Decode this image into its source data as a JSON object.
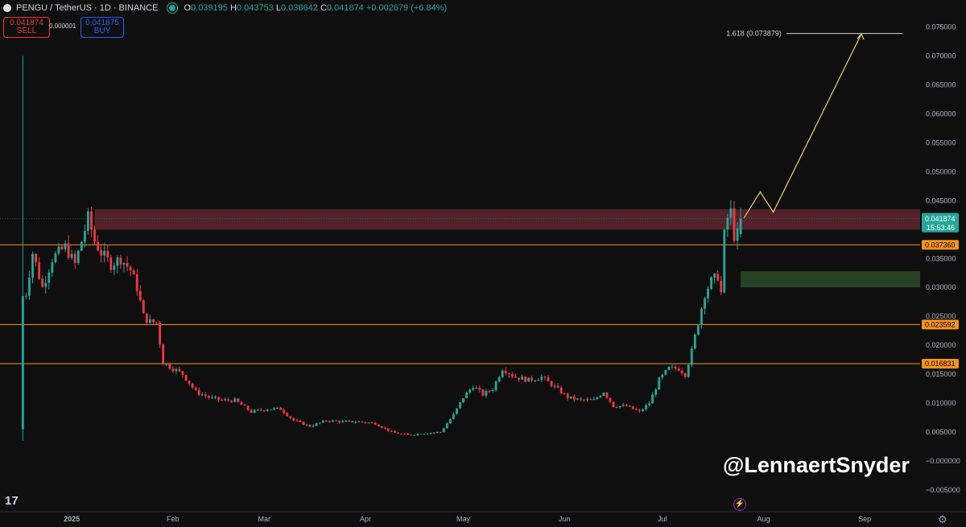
{
  "header": {
    "symbol": "PENGU / TetherUS · 1D · BINANCE",
    "o_label": "O",
    "o": "0.039195",
    "h_label": "H",
    "h": "0.043753",
    "l_label": "L",
    "l": "0.038642",
    "c_label": "C",
    "c": "0.041874",
    "change": "+0.002679 (+6.84%)"
  },
  "trade": {
    "sell_price": "0.041874",
    "sell_label": "SELL",
    "spread": "0.000001",
    "buy_price": "0.041875",
    "buy_label": "BUY"
  },
  "watermark": "@LennaertSnyder",
  "colors": {
    "up": "#26a69a",
    "down": "#f23645",
    "level": "#f7931a",
    "projection": "#e8d36a",
    "background": "#0f0f0f"
  },
  "chart_data": {
    "type": "candlestick",
    "y_range": [
      -0.005,
      0.075
    ],
    "y_ticks": [
      "0.075000",
      "0.070000",
      "0.065000",
      "0.060000",
      "0.055000",
      "0.050000",
      "0.045000",
      "0.040000",
      "0.035000",
      "0.030000",
      "0.025000",
      "0.020000",
      "0.015000",
      "0.010000",
      "0.005000",
      "−0.000000",
      "−0.005000"
    ],
    "x_labels": [
      {
        "label": "2025",
        "date": "2025-01-01"
      },
      {
        "label": "Feb",
        "date": "2025-02-01"
      },
      {
        "label": "Mar",
        "date": "2025-03-01"
      },
      {
        "label": "Apr",
        "date": "2025-04-01"
      },
      {
        "label": "May",
        "date": "2025-05-01"
      },
      {
        "label": "Jun",
        "date": "2025-06-01"
      },
      {
        "label": "Jul",
        "date": "2025-07-01"
      },
      {
        "label": "Aug",
        "date": "2025-08-01"
      },
      {
        "label": "Sep",
        "date": "2025-09-01"
      }
    ],
    "x_range": [
      "2024-12-10",
      "2025-09-18"
    ],
    "anchors": [
      [
        "2024-12-17",
        0.03
      ],
      [
        "2024-12-18",
        0.029
      ],
      [
        "2024-12-20",
        0.036
      ],
      [
        "2024-12-23",
        0.03
      ],
      [
        "2024-12-26",
        0.035
      ],
      [
        "2024-12-30",
        0.037
      ],
      [
        "2025-01-02",
        0.034
      ],
      [
        "2025-01-04",
        0.038
      ],
      [
        "2025-01-06",
        0.042
      ],
      [
        "2025-01-08",
        0.038
      ],
      [
        "2025-01-10",
        0.036
      ],
      [
        "2025-01-13",
        0.034
      ],
      [
        "2025-01-16",
        0.035
      ],
      [
        "2025-01-19",
        0.033
      ],
      [
        "2025-01-21",
        0.03
      ],
      [
        "2025-01-23",
        0.025
      ],
      [
        "2025-01-25",
        0.024
      ],
      [
        "2025-01-27",
        0.024
      ],
      [
        "2025-01-29",
        0.017
      ],
      [
        "2025-02-01",
        0.016
      ],
      [
        "2025-02-04",
        0.015
      ],
      [
        "2025-02-08",
        0.012
      ],
      [
        "2025-02-12",
        0.011
      ],
      [
        "2025-02-16",
        0.0105
      ],
      [
        "2025-02-20",
        0.0105
      ],
      [
        "2025-02-25",
        0.0085
      ],
      [
        "2025-03-02",
        0.009
      ],
      [
        "2025-03-06",
        0.009
      ],
      [
        "2025-03-10",
        0.007
      ],
      [
        "2025-03-15",
        0.006
      ],
      [
        "2025-03-20",
        0.007
      ],
      [
        "2025-03-25",
        0.0068
      ],
      [
        "2025-03-30",
        0.0068
      ],
      [
        "2025-04-04",
        0.0065
      ],
      [
        "2025-04-09",
        0.005
      ],
      [
        "2025-04-14",
        0.0045
      ],
      [
        "2025-04-19",
        0.0048
      ],
      [
        "2025-04-24",
        0.005
      ],
      [
        "2025-04-28",
        0.008
      ],
      [
        "2025-05-01",
        0.011
      ],
      [
        "2025-05-04",
        0.013
      ],
      [
        "2025-05-07",
        0.0115
      ],
      [
        "2025-05-10",
        0.0125
      ],
      [
        "2025-05-13",
        0.016
      ],
      [
        "2025-05-17",
        0.0145
      ],
      [
        "2025-05-21",
        0.014
      ],
      [
        "2025-05-25",
        0.0145
      ],
      [
        "2025-05-29",
        0.0128
      ],
      [
        "2025-06-02",
        0.011
      ],
      [
        "2025-06-06",
        0.0105
      ],
      [
        "2025-06-10",
        0.0105
      ],
      [
        "2025-06-13",
        0.012
      ],
      [
        "2025-06-16",
        0.0095
      ],
      [
        "2025-06-20",
        0.0095
      ],
      [
        "2025-06-24",
        0.0085
      ],
      [
        "2025-06-27",
        0.01
      ],
      [
        "2025-06-30",
        0.014
      ],
      [
        "2025-07-03",
        0.016
      ],
      [
        "2025-07-06",
        0.016
      ],
      [
        "2025-07-08",
        0.015
      ],
      [
        "2025-07-10",
        0.019
      ],
      [
        "2025-07-12",
        0.024
      ],
      [
        "2025-07-14",
        0.029
      ],
      [
        "2025-07-16",
        0.031
      ],
      [
        "2025-07-18",
        0.032
      ],
      [
        "2025-07-19",
        0.029
      ],
      [
        "2025-07-20",
        0.039
      ],
      [
        "2025-07-21",
        0.042
      ],
      [
        "2025-07-22",
        0.043
      ],
      [
        "2025-07-23",
        0.039
      ],
      [
        "2025-07-24",
        0.039195
      ],
      [
        "2025-07-25",
        0.041874
      ]
    ],
    "spike": {
      "date": "2024-12-17",
      "high": 0.07,
      "low": 0.0035
    },
    "levels": [
      {
        "price": 0.03736,
        "label": "0.037360"
      },
      {
        "price": 0.023592,
        "label": "0.023592"
      },
      {
        "price": 0.016831,
        "label": "0.016831"
      }
    ],
    "fib": {
      "price": 0.073879,
      "label": "1.618 (0.073879)",
      "from": "2025-08-08",
      "to": "2025-09-22"
    },
    "current": {
      "price": 0.041874,
      "label": "0.041874",
      "countdown": "15:53:46"
    },
    "zones": [
      {
        "kind": "resistance",
        "from": "2025-01-08",
        "to": "2025-09-22",
        "top": 0.0435,
        "bottom": 0.04,
        "color": "#6b2a33"
      },
      {
        "kind": "support",
        "from": "2025-07-25",
        "to": "2025-09-22",
        "top": 0.0328,
        "bottom": 0.03,
        "color": "#2c4a2c"
      }
    ],
    "projection": [
      [
        "2025-07-26",
        0.042
      ],
      [
        "2025-07-31",
        0.0465
      ],
      [
        "2025-08-04",
        0.043
      ],
      [
        "2025-08-31",
        0.0738
      ]
    ]
  }
}
